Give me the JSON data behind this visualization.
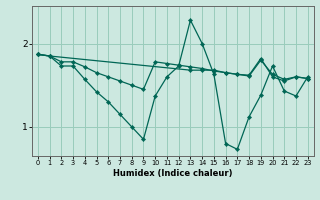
{
  "title": "",
  "xlabel": "Humidex (Indice chaleur)",
  "bg_color": "#cce8e0",
  "line_color": "#006655",
  "grid_color": "#99ccbb",
  "xlim": [
    -0.5,
    23.5
  ],
  "ylim": [
    0.65,
    2.45
  ],
  "yticks": [
    1,
    2
  ],
  "xticks": [
    0,
    1,
    2,
    3,
    4,
    5,
    6,
    7,
    8,
    9,
    10,
    11,
    12,
    13,
    14,
    15,
    16,
    17,
    18,
    19,
    20,
    21,
    22,
    23
  ],
  "series1_x": [
    0,
    1,
    2,
    3,
    4,
    5,
    6,
    7,
    8,
    9,
    10,
    11,
    12,
    13,
    14,
    15,
    16,
    17,
    18,
    19,
    20,
    21,
    22,
    23
  ],
  "series1_y": [
    1.87,
    1.85,
    1.78,
    1.78,
    1.72,
    1.65,
    1.6,
    1.55,
    1.5,
    1.45,
    1.78,
    1.76,
    1.74,
    1.72,
    1.7,
    1.67,
    1.65,
    1.63,
    1.61,
    1.8,
    1.63,
    1.57,
    1.6,
    1.58
  ],
  "series2_x": [
    0,
    1,
    2,
    3,
    4,
    5,
    6,
    7,
    8,
    9,
    10,
    11,
    12,
    13,
    14,
    15,
    16,
    17,
    18,
    19,
    20,
    21,
    22,
    23
  ],
  "series2_y": [
    1.87,
    1.85,
    1.73,
    1.73,
    1.57,
    1.42,
    1.3,
    1.15,
    1.0,
    0.85,
    1.37,
    1.6,
    1.73,
    2.28,
    2.0,
    1.63,
    0.8,
    0.73,
    1.12,
    1.38,
    1.73,
    1.43,
    1.37,
    1.6
  ],
  "series3_x": [
    0,
    1,
    13,
    14,
    15,
    16,
    17,
    18,
    19,
    20,
    21,
    22,
    23
  ],
  "series3_y": [
    1.87,
    1.85,
    1.68,
    1.68,
    1.68,
    1.65,
    1.63,
    1.62,
    1.82,
    1.6,
    1.55,
    1.6,
    1.58
  ]
}
